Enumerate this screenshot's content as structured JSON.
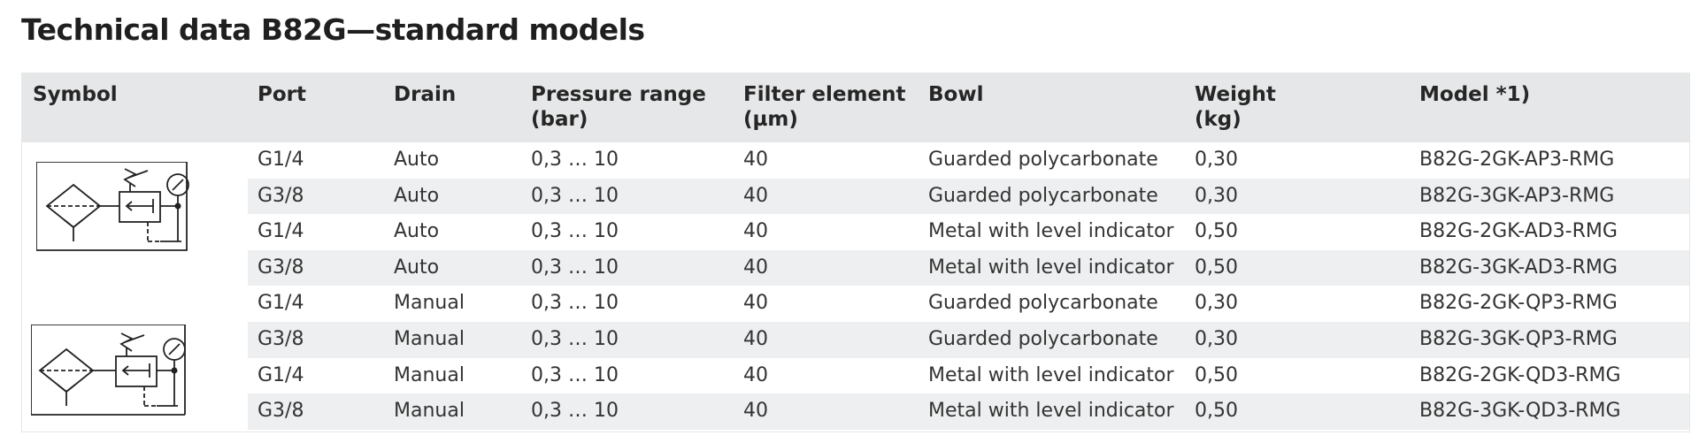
{
  "title": "Technical data B82G—standard models",
  "table": {
    "headers": {
      "symbol": "Symbol",
      "port": "Port",
      "drain": "Drain",
      "pressure": "Pressure range\n(bar)",
      "filter": "Filter element\n(µm)",
      "bowl": "Bowl",
      "weight": "Weight\n(kg)",
      "model": "Model *1)"
    },
    "rows": [
      {
        "port": "G1/4",
        "drain": "Auto",
        "pressure": "0,3 … 10",
        "filter": "40",
        "bowl": "Guarded polycarbonate",
        "weight": "0,30",
        "model": "B82G-2GK-AP3-RMG"
      },
      {
        "port": "G3/8",
        "drain": "Auto",
        "pressure": "0,3 … 10",
        "filter": "40",
        "bowl": "Guarded polycarbonate",
        "weight": "0,30",
        "model": "B82G-3GK-AP3-RMG"
      },
      {
        "port": "G1/4",
        "drain": "Auto",
        "pressure": "0,3 … 10",
        "filter": "40",
        "bowl": "Metal with level indicator",
        "weight": "0,50",
        "model": "B82G-2GK-AD3-RMG"
      },
      {
        "port": "G3/8",
        "drain": "Auto",
        "pressure": "0,3 … 10",
        "filter": "40",
        "bowl": "Metal with level indicator",
        "weight": "0,50",
        "model": "B82G-3GK-AD3-RMG"
      },
      {
        "port": "G1/4",
        "drain": "Manual",
        "pressure": "0,3 … 10",
        "filter": "40",
        "bowl": "Guarded polycarbonate",
        "weight": "0,30",
        "model": "B82G-2GK-QP3-RMG"
      },
      {
        "port": "G3/8",
        "drain": "Manual",
        "pressure": "0,3 … 10",
        "filter": "40",
        "bowl": "Guarded polycarbonate",
        "weight": "0,30",
        "model": "B82G-3GK-QP3-RMG"
      },
      {
        "port": "G1/4",
        "drain": "Manual",
        "pressure": "0,3 … 10",
        "filter": "40",
        "bowl": "Metal with level indicator",
        "weight": "0,50",
        "model": "B82G-2GK-QD3-RMG"
      },
      {
        "port": "G3/8",
        "drain": "Manual",
        "pressure": "0,3 … 10",
        "filter": "40",
        "bowl": "Metal with level indicator",
        "weight": "0,50",
        "model": "B82G-3GK-QD3-RMG"
      }
    ]
  },
  "icons": {
    "auto_drain_symbol": "filter-regulator-auto-drain-symbol-icon",
    "manual_drain_symbol": "filter-regulator-manual-drain-symbol-icon"
  },
  "colors": {
    "header_bg": "#e6e7e8",
    "alt_row_bg": "#eeeff0",
    "text": "#333333"
  }
}
